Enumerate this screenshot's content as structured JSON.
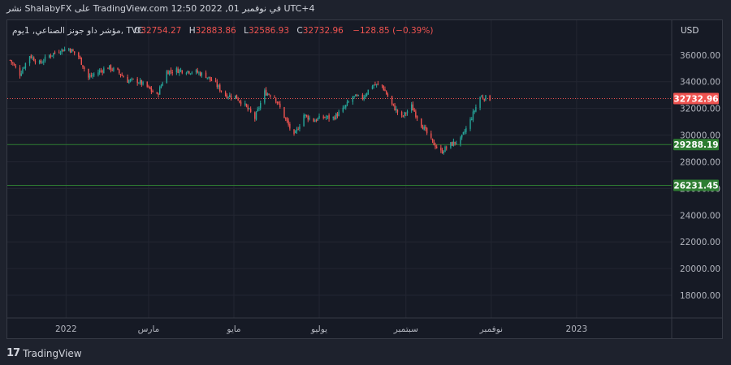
{
  "header": {
    "publish_line": "نشر ShalabyFX على TradingView.com 12:50 2022 ,01 في نوفمبر UTC+4"
  },
  "footer": {
    "brand": "TradingView",
    "logo_mark": "17"
  },
  "chart_data": {
    "type": "candlestick",
    "legend": {
      "symbol": "مؤشر داو جونز الصناعي, 1يوم, TVC",
      "open_label": "O",
      "open": "32754.27",
      "high_label": "H",
      "high": "32883.86",
      "low_label": "L",
      "low": "32586.93",
      "close_label": "C",
      "close": "32732.96",
      "change": "−128.85 (−0.39%)"
    },
    "currency": "USD",
    "y_range": [
      16300,
      38600
    ],
    "y_ticks": [
      {
        "value": 36000,
        "label": "36000.00"
      },
      {
        "value": 34000,
        "label": "34000.00"
      },
      {
        "value": 32000,
        "label": "32000.00"
      },
      {
        "value": 30000,
        "label": "30000.00"
      },
      {
        "value": 28000,
        "label": "28000.00"
      },
      {
        "value": 26000,
        "label": "26000.00"
      },
      {
        "value": 24000,
        "label": "24000.00"
      },
      {
        "value": 22000,
        "label": "22000.00"
      },
      {
        "value": 20000,
        "label": "20000.00"
      },
      {
        "value": 18000,
        "label": "18000.00"
      }
    ],
    "x_range": [
      "2021-11-20",
      "2023-03-10"
    ],
    "x_ticks": [
      {
        "date": "2022-01-01",
        "label": "2022"
      },
      {
        "date": "2022-03-01",
        "label": "مارس"
      },
      {
        "date": "2022-05-01",
        "label": "مايو"
      },
      {
        "date": "2022-07-01",
        "label": "يوليو"
      },
      {
        "date": "2022-09-01",
        "label": "سبتمبر"
      },
      {
        "date": "2022-11-01",
        "label": "نوفمبر"
      },
      {
        "date": "2023-01-01",
        "label": "2023"
      }
    ],
    "price_line": {
      "value": 32732.96,
      "label": "32732.96",
      "color": "#ef5350",
      "style": "dotted"
    },
    "horizontal_levels": [
      {
        "value": 29288.19,
        "label": "29288.19",
        "color": "#2e7d32"
      },
      {
        "value": 26231.45,
        "label": "26231.45",
        "color": "#2e7d32"
      }
    ],
    "colors": {
      "up": "#26a69a",
      "down": "#ef5350"
    },
    "series": [
      {
        "date": "2021-11-22",
        "close": 35620
      },
      {
        "date": "2021-11-29",
        "close": 34580
      },
      {
        "date": "2021-12-06",
        "close": 35970
      },
      {
        "date": "2021-12-13",
        "close": 35360
      },
      {
        "date": "2021-12-20",
        "close": 35950
      },
      {
        "date": "2021-12-27",
        "close": 36340
      },
      {
        "date": "2022-01-03",
        "close": 36480
      },
      {
        "date": "2022-01-10",
        "close": 35900
      },
      {
        "date": "2022-01-17",
        "close": 34300
      },
      {
        "date": "2022-01-24",
        "close": 34720
      },
      {
        "date": "2022-01-31",
        "close": 35090
      },
      {
        "date": "2022-02-07",
        "close": 34740
      },
      {
        "date": "2022-02-14",
        "close": 34080
      },
      {
        "date": "2022-02-21",
        "close": 34060
      },
      {
        "date": "2022-02-28",
        "close": 33600
      },
      {
        "date": "2022-03-07",
        "close": 32950
      },
      {
        "date": "2022-03-14",
        "close": 34750
      },
      {
        "date": "2022-03-21",
        "close": 34860
      },
      {
        "date": "2022-03-28",
        "close": 34820
      },
      {
        "date": "2022-04-04",
        "close": 34720
      },
      {
        "date": "2022-04-11",
        "close": 34450
      },
      {
        "date": "2022-04-18",
        "close": 33810
      },
      {
        "date": "2022-04-25",
        "close": 32980
      },
      {
        "date": "2022-05-02",
        "close": 32900
      },
      {
        "date": "2022-05-09",
        "close": 32200
      },
      {
        "date": "2022-05-16",
        "close": 31260
      },
      {
        "date": "2022-05-23",
        "close": 33210
      },
      {
        "date": "2022-05-30",
        "close": 32900
      },
      {
        "date": "2022-06-06",
        "close": 31390
      },
      {
        "date": "2022-06-13",
        "close": 29890
      },
      {
        "date": "2022-06-20",
        "close": 31500
      },
      {
        "date": "2022-06-27",
        "close": 31100
      },
      {
        "date": "2022-07-04",
        "close": 31340
      },
      {
        "date": "2022-07-11",
        "close": 31290
      },
      {
        "date": "2022-07-18",
        "close": 31900
      },
      {
        "date": "2022-07-25",
        "close": 32850
      },
      {
        "date": "2022-08-01",
        "close": 32800
      },
      {
        "date": "2022-08-08",
        "close": 33760
      },
      {
        "date": "2022-08-15",
        "close": 33700
      },
      {
        "date": "2022-08-22",
        "close": 32280
      },
      {
        "date": "2022-08-29",
        "close": 31320
      },
      {
        "date": "2022-09-05",
        "close": 32150
      },
      {
        "date": "2022-09-12",
        "close": 30820
      },
      {
        "date": "2022-09-19",
        "close": 29590
      },
      {
        "date": "2022-09-26",
        "close": 28730
      },
      {
        "date": "2022-10-03",
        "close": 29300
      },
      {
        "date": "2022-10-10",
        "close": 29630
      },
      {
        "date": "2022-10-17",
        "close": 31080
      },
      {
        "date": "2022-10-24",
        "close": 32860
      },
      {
        "date": "2022-10-31",
        "close": 32733
      }
    ]
  }
}
